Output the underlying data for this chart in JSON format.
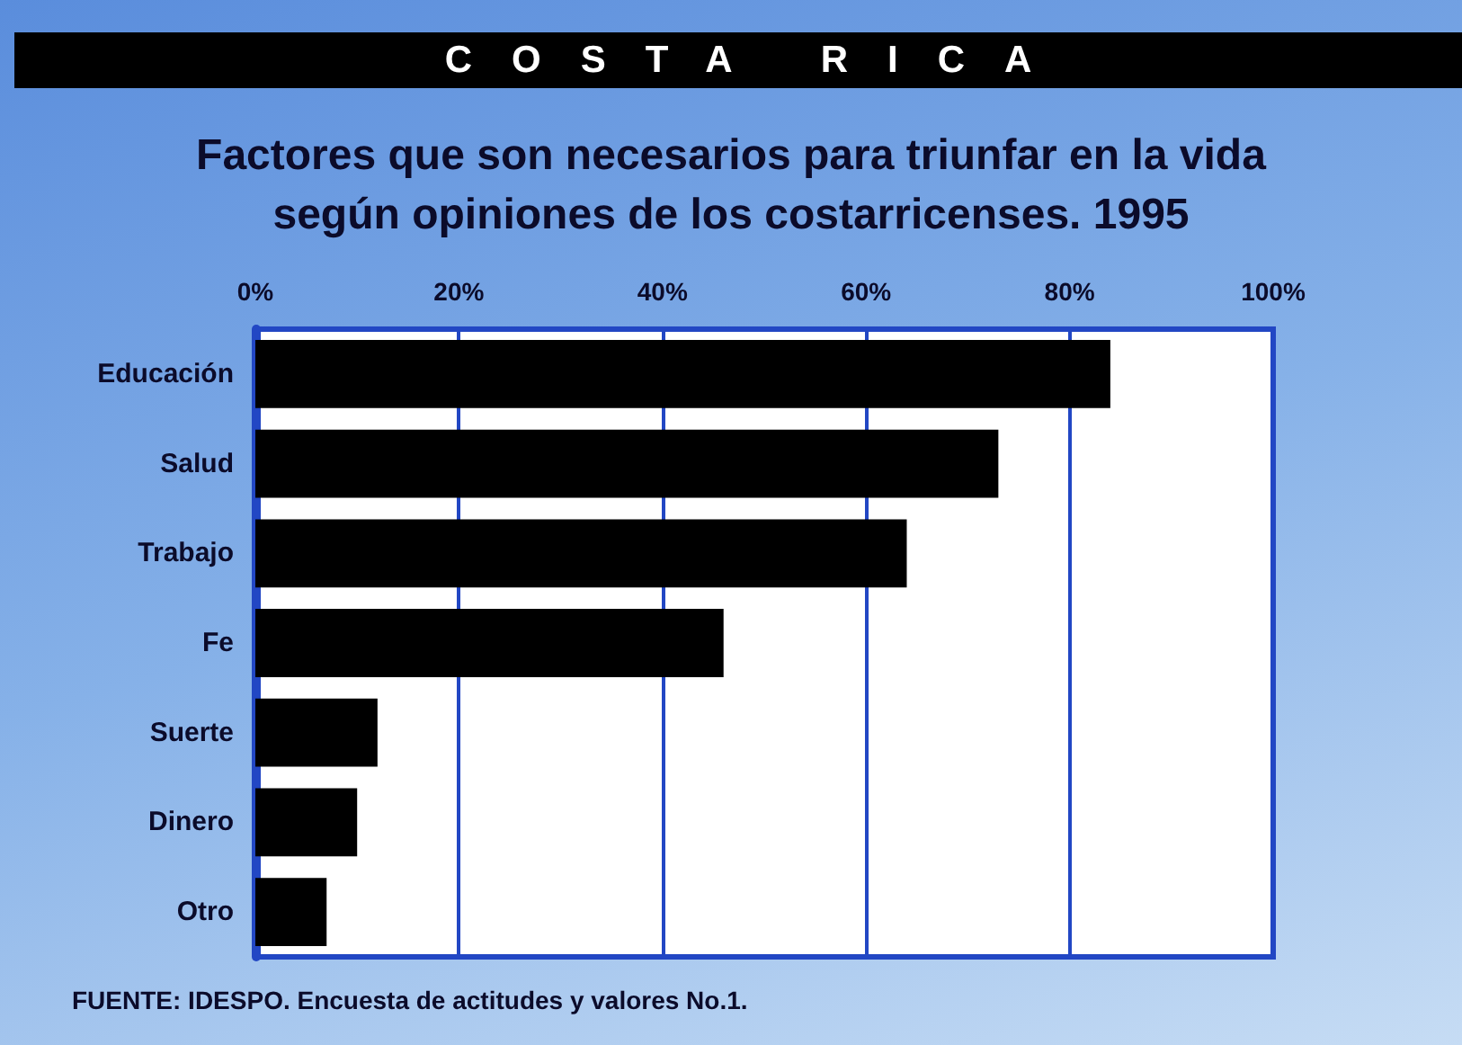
{
  "chart_data": {
    "type": "bar",
    "orientation": "horizontal",
    "title": "COSTA RICA",
    "subtitle": "Factores que son necesarios para triunfar en la vida según opiniones de los costarricenses. 1995",
    "categories": [
      "Educación",
      "Salud",
      "Trabajo",
      "Fe",
      "Suerte",
      "Dinero",
      "Otro"
    ],
    "values": [
      84,
      73,
      64,
      46,
      12,
      10,
      7
    ],
    "color": "#000000",
    "xlim": [
      0,
      100
    ],
    "xticks": [
      {
        "value": 0,
        "label": "0%"
      },
      {
        "value": 20,
        "label": "20%"
      },
      {
        "value": 40,
        "label": "40%"
      },
      {
        "value": 60,
        "label": "60%"
      },
      {
        "value": 80,
        "label": "80%"
      },
      {
        "value": 100,
        "label": "100%"
      }
    ],
    "grid": "x",
    "annotations": [
      "FUENTE: IDESPO. Encuesta de actitudes y valores No.1."
    ]
  }
}
